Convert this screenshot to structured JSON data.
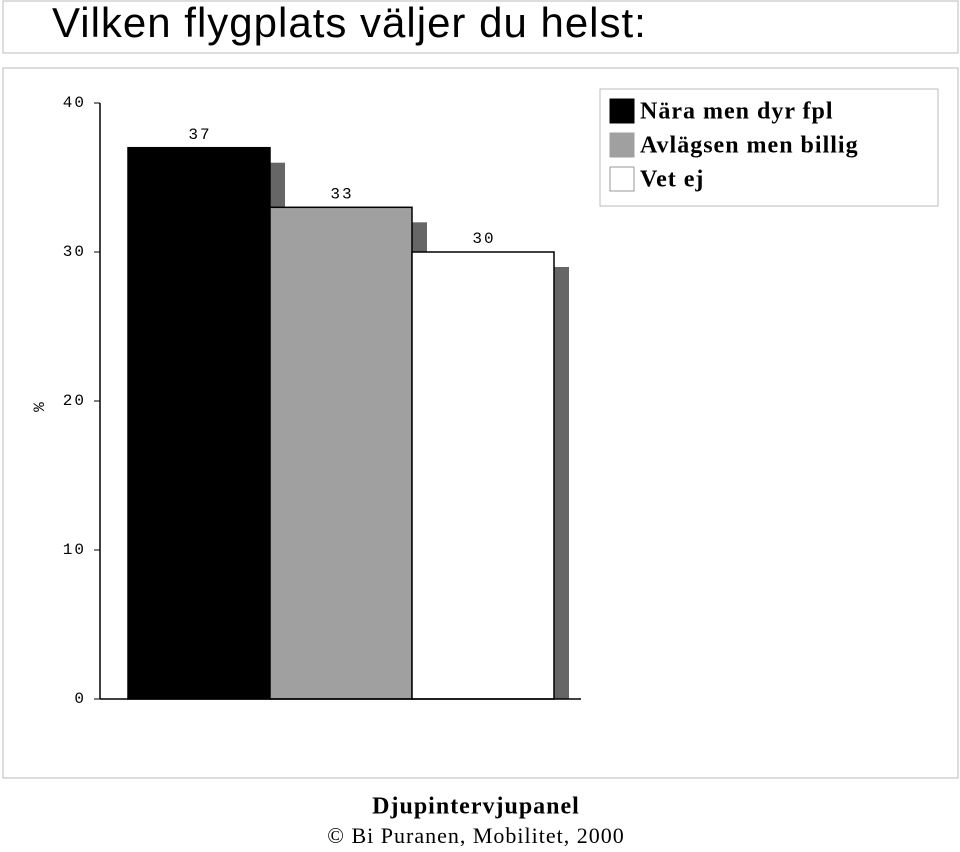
{
  "chart_data": {
    "type": "bar",
    "title": "Vilken flygplats väljer du helst:",
    "y_label": "%",
    "series": [
      {
        "name": "Nära men dyr fpl",
        "color": "#000000",
        "values": [
          37
        ]
      },
      {
        "name": "Avlägsen men billig",
        "color": "#a0a0a0",
        "values": [
          33
        ]
      },
      {
        "name": "Vet ej",
        "color": "#ffffff",
        "values": [
          30
        ]
      }
    ],
    "ylim": [
      0,
      40
    ],
    "yticks": [
      0,
      10,
      20,
      30,
      40
    ],
    "legend": "upper right",
    "footer": "Djupintervjupanel",
    "credit": "© Bi Puranen, Mobilitet, 2000"
  }
}
